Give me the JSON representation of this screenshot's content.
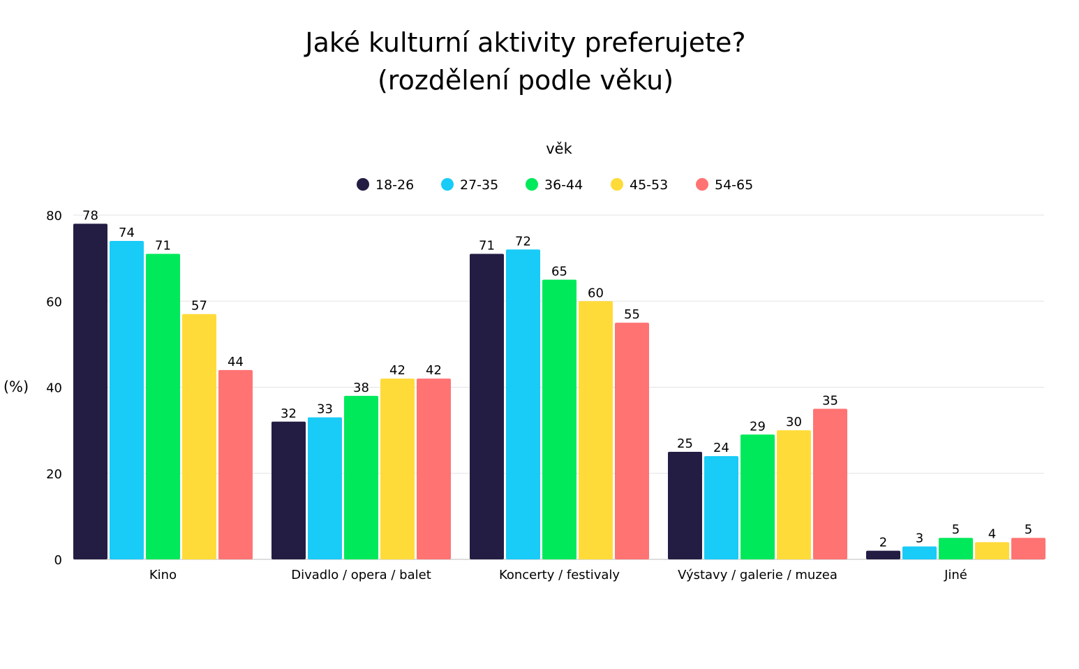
{
  "chart_data": {
    "type": "bar",
    "title_line1": "Jaké kulturní aktivity preferujete?",
    "title_line2": "(rozdělení podle věku)",
    "legend_title": "věk",
    "legend_position": "top-center",
    "ylabel": "(%)",
    "xlabel": "",
    "ylim": [
      0,
      80
    ],
    "yticks": [
      0,
      20,
      40,
      60,
      80
    ],
    "grid": true,
    "categories": [
      "Kino",
      "Divadlo / opera / balet",
      "Koncerty / festivaly",
      "Výstavy / galerie / muzea",
      "Jiné"
    ],
    "series": [
      {
        "name": "18-26",
        "color": "#231d44",
        "values": [
          78,
          32,
          71,
          25,
          2
        ]
      },
      {
        "name": "27-35",
        "color": "#19cbf7",
        "values": [
          74,
          33,
          72,
          24,
          3
        ]
      },
      {
        "name": "36-44",
        "color": "#00e95a",
        "values": [
          71,
          38,
          65,
          29,
          5
        ]
      },
      {
        "name": "45-53",
        "color": "#ffdb3a",
        "values": [
          57,
          42,
          60,
          30,
          4
        ]
      },
      {
        "name": "54-65",
        "color": "#ff7373",
        "values": [
          44,
          42,
          55,
          35,
          5
        ]
      }
    ]
  }
}
